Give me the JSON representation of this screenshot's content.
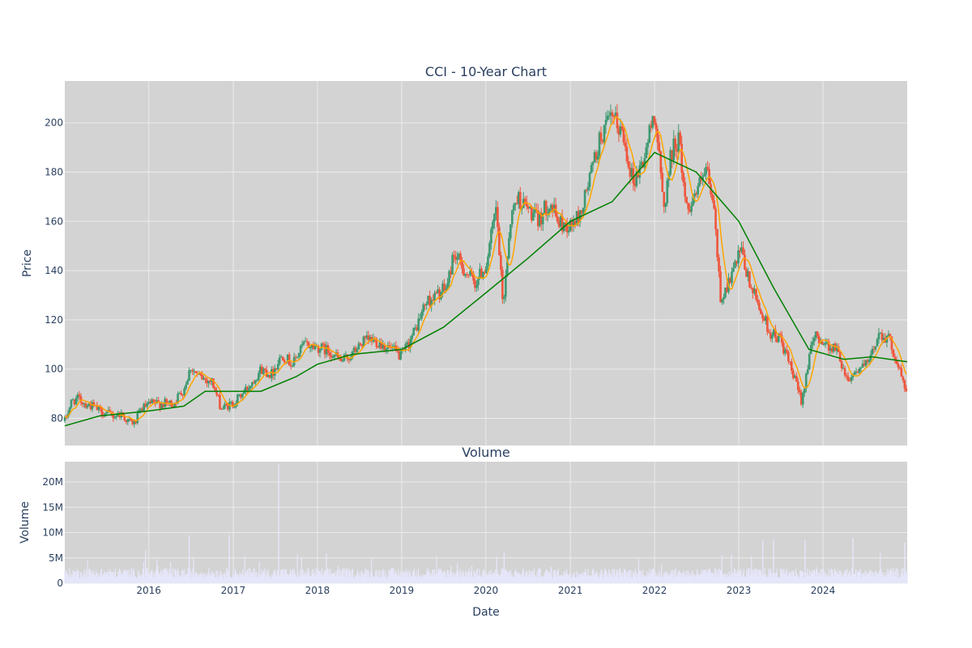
{
  "chart_data": [
    {
      "type": "candlestick",
      "title": "CCI - 10-Year Chart",
      "ylabel": "Price",
      "ylim": [
        69,
        217
      ],
      "y_ticks": [
        80,
        100,
        120,
        140,
        160,
        180,
        200
      ],
      "x_range": [
        "2015-01-02",
        "2024-12-31"
      ],
      "x_ticks": [
        "2016",
        "2017",
        "2018",
        "2019",
        "2020",
        "2021",
        "2022",
        "2023",
        "2024"
      ],
      "series": [
        {
          "name": "Close (up)",
          "color": "#3D9970"
        },
        {
          "name": "Close (down)",
          "color": "#EF553B"
        },
        {
          "name": "Short moving average",
          "color": "#FFA500"
        },
        {
          "name": "Long moving average",
          "color": "#008000"
        }
      ],
      "close_path": [
        [
          "2015-01-02",
          79
        ],
        [
          "2015-02-01",
          87
        ],
        [
          "2015-03-01",
          88
        ],
        [
          "2015-04-01",
          86
        ],
        [
          "2015-05-01",
          85
        ],
        [
          "2015-06-01",
          83
        ],
        [
          "2015-07-01",
          82
        ],
        [
          "2015-08-01",
          81
        ],
        [
          "2015-09-01",
          82
        ],
        [
          "2015-10-01",
          79
        ],
        [
          "2015-11-01",
          78
        ],
        [
          "2015-12-01",
          84
        ],
        [
          "2016-01-15",
          86
        ],
        [
          "2016-03-01",
          86
        ],
        [
          "2016-04-15",
          86
        ],
        [
          "2016-06-01",
          92
        ],
        [
          "2016-07-01",
          101
        ],
        [
          "2016-08-01",
          97
        ],
        [
          "2016-10-01",
          95
        ],
        [
          "2016-11-10",
          84
        ],
        [
          "2017-01-01",
          86
        ],
        [
          "2017-03-01",
          92
        ],
        [
          "2017-05-01",
          100
        ],
        [
          "2017-06-15",
          98
        ],
        [
          "2017-08-01",
          106
        ],
        [
          "2017-09-15",
          102
        ],
        [
          "2017-11-01",
          110
        ],
        [
          "2018-01-01",
          109
        ],
        [
          "2018-03-01",
          107
        ],
        [
          "2018-04-15",
          103
        ],
        [
          "2018-06-01",
          106
        ],
        [
          "2018-07-15",
          111
        ],
        [
          "2018-09-01",
          112
        ],
        [
          "2018-11-01",
          109
        ],
        [
          "2019-01-01",
          105
        ],
        [
          "2019-03-01",
          116
        ],
        [
          "2019-04-15",
          127
        ],
        [
          "2019-06-01",
          130
        ],
        [
          "2019-07-15",
          133
        ],
        [
          "2019-08-15",
          147
        ],
        [
          "2019-10-01",
          140
        ],
        [
          "2019-11-15",
          135
        ],
        [
          "2020-01-01",
          142
        ],
        [
          "2020-02-15",
          165
        ],
        [
          "2020-03-15",
          125
        ],
        [
          "2020-04-15",
          160
        ],
        [
          "2020-05-15",
          170
        ],
        [
          "2020-07-01",
          165
        ],
        [
          "2020-08-15",
          160
        ],
        [
          "2020-10-01",
          168
        ],
        [
          "2020-11-15",
          159
        ],
        [
          "2021-01-01",
          158
        ],
        [
          "2021-02-15",
          163
        ],
        [
          "2021-04-01",
          180
        ],
        [
          "2021-05-15",
          195
        ],
        [
          "2021-07-01",
          202
        ],
        [
          "2021-08-15",
          196
        ],
        [
          "2021-10-01",
          176
        ],
        [
          "2021-11-15",
          185
        ],
        [
          "2022-01-01",
          205
        ],
        [
          "2022-02-10",
          165
        ],
        [
          "2022-03-15",
          188
        ],
        [
          "2022-04-15",
          194
        ],
        [
          "2022-05-20",
          165
        ],
        [
          "2022-07-01",
          172
        ],
        [
          "2022-08-15",
          180
        ],
        [
          "2022-09-15",
          165
        ],
        [
          "2022-10-15",
          128
        ],
        [
          "2022-12-01",
          138
        ],
        [
          "2023-01-10",
          148
        ],
        [
          "2023-02-15",
          135
        ],
        [
          "2023-04-01",
          125
        ],
        [
          "2023-05-15",
          115
        ],
        [
          "2023-07-01",
          112
        ],
        [
          "2023-08-15",
          100
        ],
        [
          "2023-10-01",
          87
        ],
        [
          "2023-11-01",
          105
        ],
        [
          "2023-12-01",
          114
        ],
        [
          "2024-01-15",
          110
        ],
        [
          "2024-03-01",
          108
        ],
        [
          "2024-04-15",
          96
        ],
        [
          "2024-06-01",
          100
        ],
        [
          "2024-07-15",
          102
        ],
        [
          "2024-09-01",
          115
        ],
        [
          "2024-10-15",
          112
        ],
        [
          "2024-11-15",
          103
        ],
        [
          "2024-12-31",
          90
        ]
      ],
      "long_ma": [
        [
          "2015-01-02",
          77
        ],
        [
          "2015-06-01",
          81
        ],
        [
          "2016-01-01",
          83
        ],
        [
          "2016-06-01",
          85
        ],
        [
          "2016-09-01",
          91
        ],
        [
          "2017-05-01",
          91
        ],
        [
          "2017-10-01",
          97
        ],
        [
          "2018-01-01",
          102
        ],
        [
          "2018-06-01",
          106
        ],
        [
          "2019-01-01",
          108
        ],
        [
          "2019-07-01",
          117
        ],
        [
          "2020-01-01",
          131
        ],
        [
          "2020-07-01",
          145
        ],
        [
          "2021-01-01",
          160
        ],
        [
          "2021-07-01",
          168
        ],
        [
          "2022-01-01",
          188
        ],
        [
          "2022-07-01",
          180
        ],
        [
          "2023-01-01",
          160
        ],
        [
          "2023-06-01",
          133
        ],
        [
          "2023-11-01",
          108
        ],
        [
          "2024-04-01",
          104
        ],
        [
          "2024-08-01",
          105
        ],
        [
          "2024-12-31",
          103
        ]
      ],
      "grid": true,
      "legend": "none"
    },
    {
      "type": "bar",
      "title": "Volume",
      "xlabel": "Date",
      "ylabel": "Volume",
      "ylim": [
        0,
        24000000
      ],
      "y_ticks": [
        0,
        5000000,
        10000000,
        15000000,
        20000000
      ],
      "y_tick_labels": [
        "0",
        "5M",
        "10M",
        "15M",
        "20M"
      ],
      "x_ticks": [
        "2016",
        "2017",
        "2018",
        "2019",
        "2020",
        "2021",
        "2022",
        "2023",
        "2024"
      ],
      "typical_volume": 2000000,
      "spikes": [
        [
          "2017-07-17",
          23500000
        ],
        [
          "2016-06-24",
          9500000
        ],
        [
          "2016-12-15",
          9500000
        ],
        [
          "2023-04-15",
          8500000
        ],
        [
          "2023-06-01",
          8700000
        ],
        [
          "2023-10-15",
          8500000
        ],
        [
          "2024-05-10",
          9000000
        ],
        [
          "2024-12-20",
          8000000
        ],
        [
          "2015-12-18",
          6500000
        ],
        [
          "2020-03-20",
          6000000
        ],
        [
          "2022-10-20",
          5500000
        ]
      ],
      "bar_color": "#E6E6FA",
      "grid": true
    }
  ],
  "colors": {
    "plot_bg": "#D3D3D3",
    "grid": "#EBEBEB",
    "text": "#2a3f5f",
    "page_bg": "#FFFFFF"
  }
}
